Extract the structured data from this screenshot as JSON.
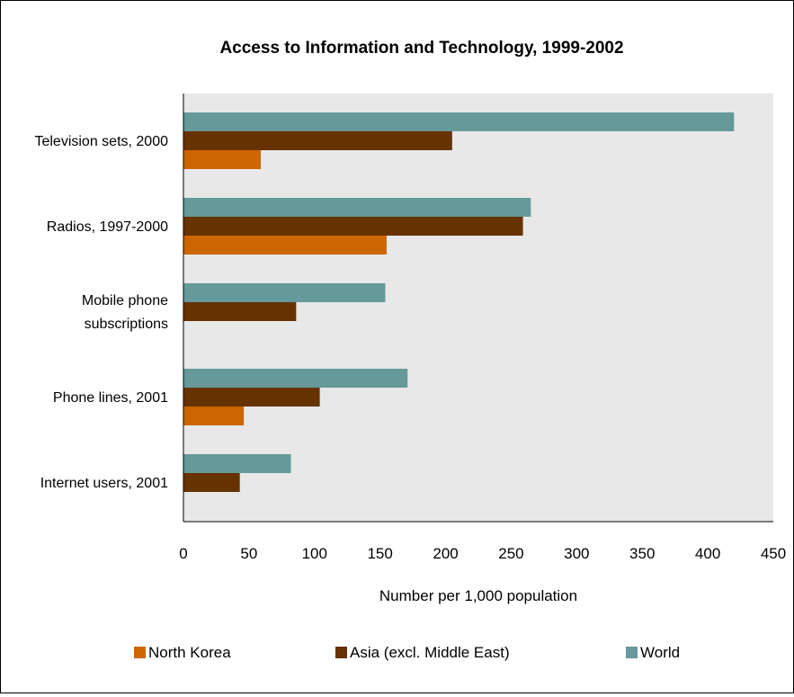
{
  "chart_data": {
    "type": "bar",
    "orientation": "horizontal",
    "title": "Access to Information and Technology, 1999-2002",
    "xlabel": "Number per 1,000 population",
    "ylabel": "",
    "xlim": [
      0,
      450
    ],
    "x_ticks": [
      "0",
      "50",
      "100",
      "150",
      "200",
      "250",
      "300",
      "350",
      "400",
      "450"
    ],
    "categories": [
      {
        "lines": [
          "Television sets, 2000"
        ]
      },
      {
        "lines": [
          "Radios, 1997-2000"
        ]
      },
      {
        "lines": [
          "Mobile phone",
          "subscriptions"
        ]
      },
      {
        "lines": [
          "Phone lines, 2001"
        ]
      },
      {
        "lines": [
          "Internet users, 2001"
        ]
      }
    ],
    "series": [
      {
        "name": "World",
        "color": "#669999",
        "values": [
          420,
          265,
          154,
          171,
          82
        ]
      },
      {
        "name": "Asia (excl. Middle East)",
        "color": "#663300",
        "values": [
          205,
          259,
          86,
          104,
          43
        ]
      },
      {
        "name": "North Korea",
        "color": "#cc6600",
        "values": [
          59,
          155,
          null,
          46,
          null
        ]
      }
    ],
    "legend_order": [
      "North Korea",
      "Asia (excl. Middle East)",
      "World"
    ],
    "legend_position": "bottom",
    "plot_background": "#e8e8e8",
    "grid": false
  }
}
